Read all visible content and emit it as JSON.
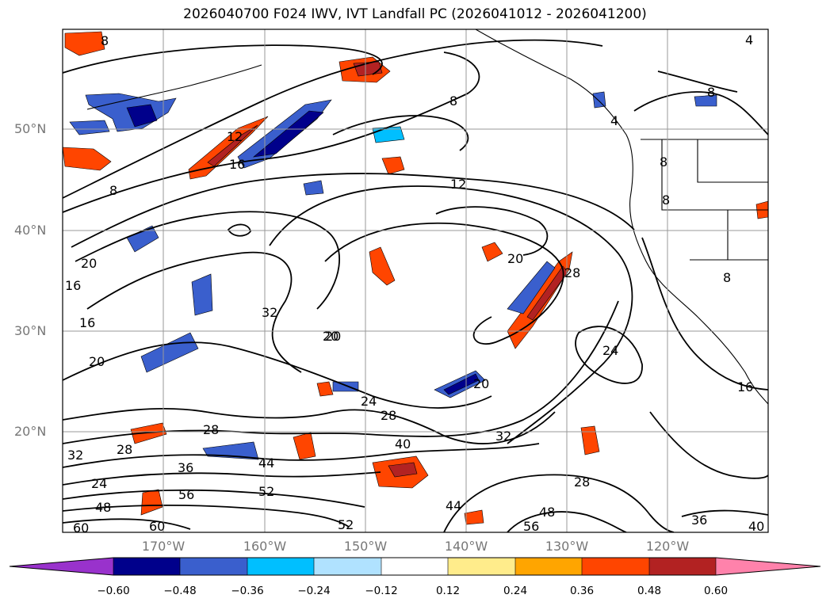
{
  "title": "2026040700 F024 IWV, IVT Landfall PC (2026041012 - 2026041200)",
  "lat_labels": [
    "50°N",
    "40°N",
    "30°N",
    "20°N"
  ],
  "lon_labels": [
    "170°W",
    "160°W",
    "150°W",
    "140°W",
    "130°W",
    "120°W"
  ],
  "colorbar": {
    "ticks": [
      "−0.60",
      "−0.48",
      "−0.36",
      "−0.24",
      "−0.12",
      "0.12",
      "0.24",
      "0.36",
      "0.48",
      "0.60"
    ],
    "colors": [
      "#9932cc",
      "#00008b",
      "#3a5fcd",
      "#00bfff",
      "#b0e2ff",
      "#ffffff",
      "#ffec8b",
      "#ffa500",
      "#ff4500",
      "#b22222",
      "#ff82ab"
    ]
  },
  "contour_labels": [
    "8",
    "8",
    "8",
    "12",
    "12",
    "16",
    "16",
    "16",
    "20",
    "20",
    "20",
    "20",
    "20",
    "24",
    "24",
    "24",
    "28",
    "28",
    "28",
    "28",
    "32",
    "32",
    "32",
    "36",
    "36",
    "40",
    "40",
    "44",
    "44",
    "48",
    "48",
    "52",
    "52",
    "56",
    "56",
    "60",
    "60",
    "4",
    "4",
    "8",
    "8",
    "16",
    "8",
    "8",
    "28",
    "20"
  ]
}
